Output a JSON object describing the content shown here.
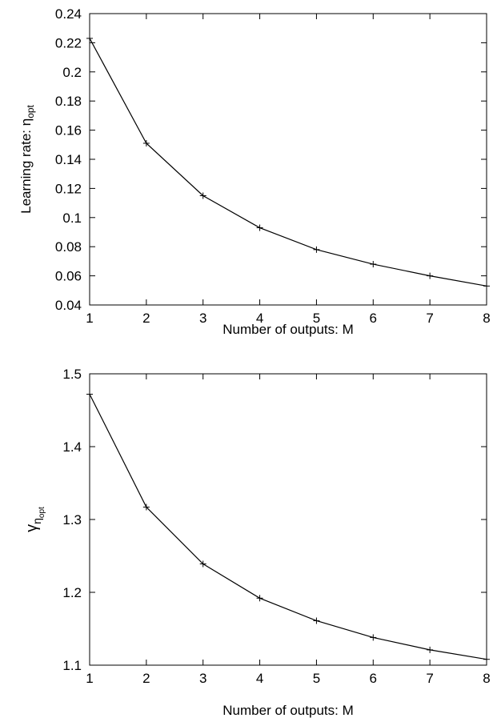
{
  "chart_data": [
    {
      "type": "line",
      "x": [
        1,
        2,
        3,
        4,
        5,
        6,
        7,
        8
      ],
      "series": [
        {
          "values": [
            0.223,
            0.151,
            0.115,
            0.093,
            0.078,
            0.068,
            0.06,
            0.053
          ]
        }
      ],
      "ylabel_main": "Learning rate: η",
      "ylabel_sub": "opt",
      "xlabel": "Number of outputs: M",
      "xlim": [
        1,
        8
      ],
      "ylim": [
        0.04,
        0.24
      ],
      "xticks": [
        1,
        2,
        3,
        4,
        5,
        6,
        7,
        8
      ],
      "yticks": [
        0.04,
        0.06,
        0.08,
        0.1,
        0.12,
        0.14,
        0.16,
        0.18,
        0.2,
        0.22,
        0.24
      ],
      "ytick_labels": [
        "0.04",
        "0.06",
        "0.08",
        "0.1",
        "0.12",
        "0.14",
        "0.16",
        "0.18",
        "0.2",
        "0.22",
        "0.24"
      ],
      "grid": false,
      "marker": "plus"
    },
    {
      "type": "line",
      "x": [
        1,
        2,
        3,
        4,
        5,
        6,
        7,
        8
      ],
      "series": [
        {
          "values": [
            1.472,
            1.317,
            1.239,
            1.192,
            1.161,
            1.138,
            1.121,
            1.108
          ]
        }
      ],
      "ylabel_main": "γ",
      "ylabel_sub": "η",
      "ylabel_subsub": "opt",
      "xlabel": "Number of outputs: M",
      "xlim": [
        1,
        8
      ],
      "ylim": [
        1.1,
        1.5
      ],
      "xticks": [
        1,
        2,
        3,
        4,
        5,
        6,
        7,
        8
      ],
      "yticks": [
        1.1,
        1.2,
        1.3,
        1.4,
        1.5
      ],
      "ytick_labels": [
        "1.1",
        "1.2",
        "1.3",
        "1.4",
        "1.5"
      ],
      "grid": false,
      "marker": "plus"
    }
  ]
}
